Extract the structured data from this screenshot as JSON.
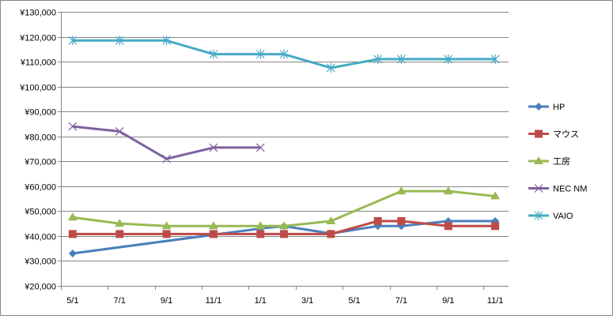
{
  "chart_data": {
    "type": "line",
    "title": "",
    "xlabel": "",
    "ylabel": "",
    "x_unit": "months since first May",
    "x": [
      0,
      2,
      4,
      6,
      8,
      9,
      11,
      13,
      14,
      16,
      18
    ],
    "xlim": [
      -0.5,
      18.57
    ],
    "x_ticks": [
      0,
      2,
      4,
      6,
      8,
      10,
      12,
      14,
      16,
      18
    ],
    "x_tick_labels": [
      "5/1",
      "7/1",
      "9/1",
      "11/1",
      "1/1",
      "3/1",
      "5/1",
      "7/1",
      "9/1",
      "11/1"
    ],
    "ylim": [
      20000,
      130000
    ],
    "y_step": 10000,
    "y_tick_labels": [
      "¥20,000",
      "¥30,000",
      "¥40,000",
      "¥50,000",
      "¥60,000",
      "¥70,000",
      "¥80,000",
      "¥90,000",
      "¥100,000",
      "¥110,000",
      "¥120,000",
      "¥130,000"
    ],
    "grid": true,
    "legend_position": "right",
    "series": [
      {
        "name": "HP",
        "color": "#4a7ebb",
        "marker": "diamond",
        "values": [
          33000,
          null,
          null,
          null,
          43000,
          44000,
          41000,
          44000,
          44000,
          46000,
          46000
        ]
      },
      {
        "name": "マウス",
        "color": "#be4b48",
        "marker": "square",
        "values": [
          40800,
          40800,
          40800,
          40800,
          40800,
          40800,
          40800,
          46000,
          46000,
          44000,
          44000
        ]
      },
      {
        "name": "工房",
        "color": "#98b954",
        "marker": "triangle",
        "values": [
          47500,
          45000,
          44000,
          44000,
          44000,
          44000,
          46000,
          null,
          58000,
          58000,
          56000
        ]
      },
      {
        "name": "NEC NM",
        "color": "#7d60a0",
        "marker": "x",
        "values": [
          84000,
          82000,
          71000,
          75500,
          75500,
          null,
          null,
          null,
          null,
          null,
          null
        ]
      },
      {
        "name": "VAIO",
        "color": "#46aac5",
        "marker": "star",
        "values": [
          118500,
          118500,
          118500,
          113000,
          113000,
          113000,
          107500,
          111000,
          111000,
          111000,
          111000
        ]
      }
    ]
  }
}
